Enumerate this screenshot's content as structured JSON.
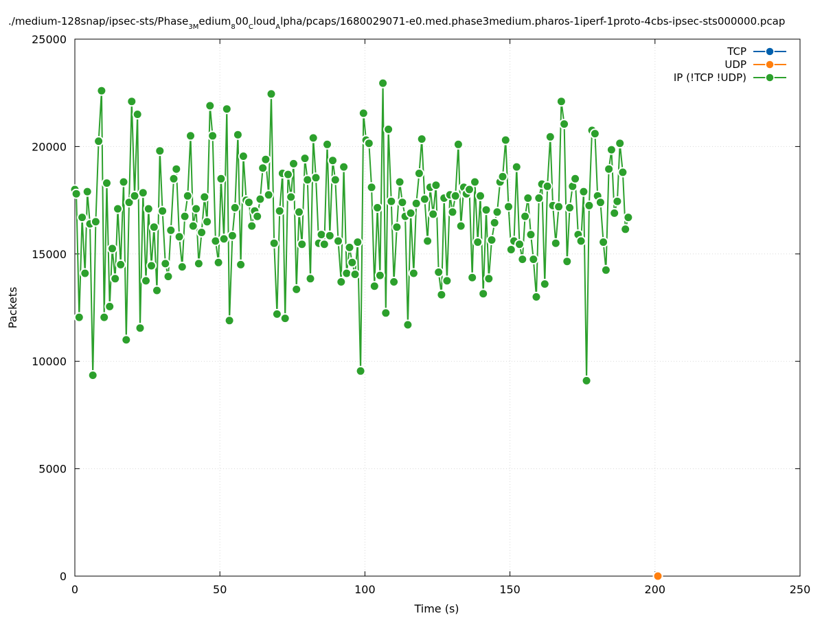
{
  "chart_data": {
    "type": "line",
    "title_parts": [
      {
        "text": "./medium-128snap/ipsec-sts/Phase",
        "sub": false
      },
      {
        "text": "3M",
        "sub": true
      },
      {
        "text": "edium",
        "sub": false
      },
      {
        "text": "8",
        "sub": true
      },
      {
        "text": "00",
        "sub": false
      },
      {
        "text": "C",
        "sub": true
      },
      {
        "text": "loud",
        "sub": false
      },
      {
        "text": "A",
        "sub": true
      },
      {
        "text": "lpha/pcaps/1680029071-e0.med.phase3medium.pharos-1iperf-1proto-4cbs-ipsec-sts000000.pcap",
        "sub": false
      }
    ],
    "xlabel": "Time (s)",
    "ylabel": "Packets",
    "xlim": [
      0,
      250
    ],
    "ylim": [
      0,
      25000
    ],
    "xticks": [
      "0",
      "50",
      "100",
      "150",
      "200",
      "250"
    ],
    "yticks": [
      "0",
      "5000",
      "10000",
      "15000",
      "20000",
      "25000"
    ],
    "grid": true,
    "legend_position": "top-right",
    "series": [
      {
        "name": "TCP",
        "color": "#0060ad",
        "points": []
      },
      {
        "name": "UDP",
        "color": "#ff7f0e",
        "points": [
          [
            201,
            0
          ]
        ]
      },
      {
        "name": "IP (!TCP  !UDP)",
        "color": "#2ca02c",
        "points": [
          [
            0,
            18000
          ],
          [
            0.5,
            17800
          ],
          [
            1.5,
            12050
          ],
          [
            2.5,
            16700
          ],
          [
            3.5,
            14100
          ],
          [
            4.3,
            17900
          ],
          [
            5.2,
            16400
          ],
          [
            6.2,
            9350
          ],
          [
            7.2,
            16500
          ],
          [
            8.2,
            20250
          ],
          [
            9.2,
            22600
          ],
          [
            10.1,
            12050
          ],
          [
            11.0,
            18300
          ],
          [
            12.0,
            12550
          ],
          [
            12.9,
            15250
          ],
          [
            13.9,
            13850
          ],
          [
            14.8,
            17100
          ],
          [
            15.8,
            14500
          ],
          [
            16.8,
            18350
          ],
          [
            17.7,
            11000
          ],
          [
            18.7,
            17400
          ],
          [
            19.6,
            22100
          ],
          [
            20.6,
            17700
          ],
          [
            21.6,
            21500
          ],
          [
            22.5,
            11550
          ],
          [
            23.5,
            17850
          ],
          [
            24.5,
            13750
          ],
          [
            25.4,
            17100
          ],
          [
            26.4,
            14450
          ],
          [
            27.3,
            16250
          ],
          [
            28.3,
            13300
          ],
          [
            29.3,
            19800
          ],
          [
            30.2,
            17000
          ],
          [
            31.2,
            14550
          ],
          [
            32.2,
            13950
          ],
          [
            33.1,
            16100
          ],
          [
            34.1,
            18500
          ],
          [
            35.0,
            18950
          ],
          [
            36.0,
            15800
          ],
          [
            37.0,
            14400
          ],
          [
            37.9,
            16750
          ],
          [
            38.9,
            17700
          ],
          [
            39.9,
            20500
          ],
          [
            40.8,
            16300
          ],
          [
            41.8,
            17100
          ],
          [
            42.7,
            14550
          ],
          [
            43.7,
            16000
          ],
          [
            44.7,
            17650
          ],
          [
            45.6,
            16500
          ],
          [
            46.6,
            21900
          ],
          [
            47.5,
            20500
          ],
          [
            48.5,
            15600
          ],
          [
            49.5,
            14600
          ],
          [
            50.4,
            18500
          ],
          [
            51.4,
            15700
          ],
          [
            52.4,
            21750
          ],
          [
            53.3,
            11900
          ],
          [
            54.3,
            15850
          ],
          [
            55.2,
            17150
          ],
          [
            56.2,
            20550
          ],
          [
            57.2,
            14500
          ],
          [
            58.1,
            19550
          ],
          [
            59.1,
            17500
          ],
          [
            60.0,
            17400
          ],
          [
            61.0,
            16300
          ],
          [
            62.0,
            17000
          ],
          [
            62.9,
            16750
          ],
          [
            63.9,
            17550
          ],
          [
            64.8,
            19000
          ],
          [
            65.8,
            19400
          ],
          [
            66.8,
            17750
          ],
          [
            67.7,
            22450
          ],
          [
            68.7,
            15500
          ],
          [
            69.7,
            12200
          ],
          [
            70.6,
            17000
          ],
          [
            71.6,
            18750
          ],
          [
            72.5,
            12000
          ],
          [
            73.5,
            18700
          ],
          [
            74.5,
            17650
          ],
          [
            75.4,
            19200
          ],
          [
            76.4,
            13350
          ],
          [
            77.3,
            16950
          ],
          [
            78.3,
            15450
          ],
          [
            79.3,
            19450
          ],
          [
            80.2,
            18450
          ],
          [
            81.2,
            13850
          ],
          [
            82.2,
            20400
          ],
          [
            83.1,
            18550
          ],
          [
            84.1,
            15500
          ],
          [
            85.0,
            15900
          ],
          [
            86.0,
            15450
          ],
          [
            87.0,
            20100
          ],
          [
            87.9,
            15850
          ],
          [
            88.9,
            19350
          ],
          [
            89.8,
            18450
          ],
          [
            90.8,
            15600
          ],
          [
            91.8,
            13700
          ],
          [
            92.7,
            19050
          ],
          [
            93.7,
            14100
          ],
          [
            94.7,
            15300
          ],
          [
            95.6,
            14600
          ],
          [
            96.6,
            14050
          ],
          [
            97.5,
            15550
          ],
          [
            98.5,
            9550
          ],
          [
            99.5,
            21550
          ],
          [
            100.4,
            20300
          ],
          [
            101.4,
            20150
          ],
          [
            102.3,
            18100
          ],
          [
            103.3,
            13500
          ],
          [
            104.3,
            17150
          ],
          [
            105.2,
            14000
          ],
          [
            106.2,
            22950
          ],
          [
            107.2,
            12250
          ],
          [
            108.1,
            20800
          ],
          [
            109.1,
            17450
          ],
          [
            110.0,
            13700
          ],
          [
            111.0,
            16250
          ],
          [
            112.0,
            18350
          ],
          [
            112.9,
            17400
          ],
          [
            113.9,
            16750
          ],
          [
            114.8,
            11700
          ],
          [
            115.8,
            16900
          ],
          [
            116.8,
            14100
          ],
          [
            117.7,
            17350
          ],
          [
            118.7,
            18750
          ],
          [
            119.6,
            20350
          ],
          [
            120.6,
            17550
          ],
          [
            121.6,
            15600
          ],
          [
            122.5,
            18100
          ],
          [
            123.5,
            16850
          ],
          [
            124.5,
            18200
          ],
          [
            125.4,
            14150
          ],
          [
            126.4,
            13100
          ],
          [
            127.3,
            17600
          ],
          [
            128.3,
            13750
          ],
          [
            129.3,
            17750
          ],
          [
            130.2,
            16950
          ],
          [
            131.2,
            17700
          ],
          [
            132.2,
            20100
          ],
          [
            133.1,
            16300
          ],
          [
            134.1,
            18100
          ],
          [
            135.0,
            17800
          ],
          [
            136.0,
            18000
          ],
          [
            137.0,
            13900
          ],
          [
            137.9,
            18350
          ],
          [
            138.9,
            15550
          ],
          [
            139.8,
            17700
          ],
          [
            140.8,
            13150
          ],
          [
            141.8,
            17050
          ],
          [
            142.7,
            13850
          ],
          [
            143.7,
            15650
          ],
          [
            144.7,
            16450
          ],
          [
            145.6,
            16950
          ],
          [
            146.6,
            18350
          ],
          [
            147.5,
            18600
          ],
          [
            148.5,
            20300
          ],
          [
            149.5,
            17200
          ],
          [
            150.4,
            15200
          ],
          [
            151.4,
            15600
          ],
          [
            152.3,
            19050
          ],
          [
            153.3,
            15450
          ],
          [
            154.3,
            14750
          ],
          [
            155.2,
            16750
          ],
          [
            156.2,
            17600
          ],
          [
            157.2,
            15900
          ],
          [
            158.1,
            14750
          ],
          [
            159.1,
            13000
          ],
          [
            160.0,
            17600
          ],
          [
            161.0,
            18250
          ],
          [
            162.0,
            13600
          ],
          [
            162.9,
            18150
          ],
          [
            163.9,
            20450
          ],
          [
            164.8,
            17250
          ],
          [
            165.8,
            15500
          ],
          [
            166.8,
            17200
          ],
          [
            167.7,
            22100
          ],
          [
            168.7,
            21050
          ],
          [
            169.7,
            14650
          ],
          [
            170.6,
            17150
          ],
          [
            171.6,
            18150
          ],
          [
            172.5,
            18500
          ],
          [
            173.5,
            15900
          ],
          [
            174.5,
            15600
          ],
          [
            175.4,
            17900
          ],
          [
            176.4,
            9100
          ],
          [
            177.3,
            17250
          ],
          [
            178.3,
            20750
          ],
          [
            179.3,
            20600
          ],
          [
            180.2,
            17700
          ],
          [
            181.2,
            17400
          ],
          [
            182.2,
            15550
          ],
          [
            183.1,
            14250
          ],
          [
            184.1,
            18950
          ],
          [
            185.0,
            19850
          ],
          [
            186.0,
            16900
          ],
          [
            187.0,
            17450
          ],
          [
            187.9,
            20150
          ],
          [
            188.9,
            18800
          ],
          [
            189.8,
            16150
          ],
          [
            190.8,
            16700
          ]
        ]
      }
    ]
  }
}
